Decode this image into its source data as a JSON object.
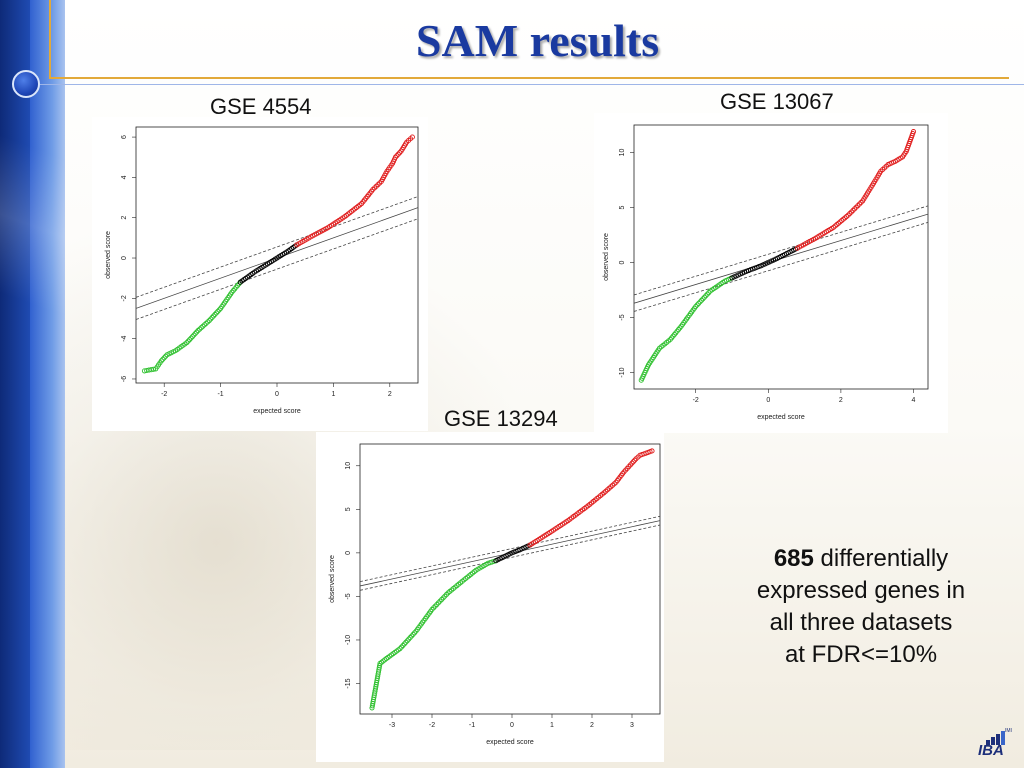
{
  "slide": {
    "title": "SAM results",
    "summary": {
      "count": "685",
      "line1_rest": " differentially",
      "line2": "expressed genes in",
      "line3": "all three datasets",
      "line4": "at FDR<=10%"
    },
    "logo_text": "IBA",
    "logo_small": "IMI"
  },
  "colors": {
    "title": "#1a3aa0",
    "significant_up": "#e01c1c",
    "significant_down": "#2ec02e",
    "not_significant": "#000000",
    "band_line": "#444444"
  },
  "chart_data": [
    {
      "type": "scatter",
      "title": "GSE 4554",
      "xlabel": "expected score",
      "ylabel": "observed score",
      "xlim": [
        -2.5,
        2.5
      ],
      "ylim": [
        -6.2,
        6.5
      ],
      "xticks": [
        -2,
        -1,
        0,
        1,
        2
      ],
      "yticks": [
        -6,
        -4,
        -2,
        0,
        2,
        4,
        6
      ],
      "band": {
        "slope": 1,
        "offset": 0.55
      },
      "series": [
        {
          "color": "green",
          "points": [
            [
              -2.35,
              -5.6
            ],
            [
              -2.15,
              -5.5
            ],
            [
              -2.05,
              -5.1
            ],
            [
              -1.95,
              -4.8
            ],
            [
              -1.8,
              -4.6
            ],
            [
              -1.6,
              -4.2
            ],
            [
              -1.4,
              -3.6
            ],
            [
              -1.2,
              -3.1
            ],
            [
              -1.0,
              -2.5
            ],
            [
              -0.8,
              -1.7
            ],
            [
              -0.65,
              -1.2
            ]
          ]
        },
        {
          "color": "black",
          "points": [
            [
              -0.65,
              -1.2
            ],
            [
              -0.4,
              -0.7
            ],
            [
              -0.2,
              -0.35
            ],
            [
              0.0,
              0.0
            ],
            [
              0.2,
              0.35
            ],
            [
              0.35,
              0.65
            ]
          ]
        },
        {
          "color": "red",
          "points": [
            [
              0.35,
              0.65
            ],
            [
              0.6,
              1.05
            ],
            [
              0.9,
              1.5
            ],
            [
              1.2,
              2.05
            ],
            [
              1.5,
              2.7
            ],
            [
              1.7,
              3.4
            ],
            [
              1.85,
              3.8
            ],
            [
              1.95,
              4.3
            ],
            [
              2.05,
              4.7
            ],
            [
              2.1,
              5.0
            ],
            [
              2.2,
              5.3
            ],
            [
              2.3,
              5.75
            ],
            [
              2.4,
              6.0
            ]
          ]
        }
      ]
    },
    {
      "type": "scatter",
      "title": "GSE 13067",
      "xlabel": "expected score",
      "ylabel": "observed score",
      "xlim": [
        -3.7,
        4.4
      ],
      "ylim": [
        -11.5,
        12.5
      ],
      "xticks": [
        -2,
        0,
        2,
        4
      ],
      "yticks": [
        -10,
        -5,
        0,
        5,
        10
      ],
      "band": {
        "slope": 1,
        "offset": 0.75
      },
      "series": [
        {
          "color": "green",
          "points": [
            [
              -3.5,
              -10.7
            ],
            [
              -3.3,
              -9.3
            ],
            [
              -3.2,
              -8.8
            ],
            [
              -3.0,
              -7.8
            ],
            [
              -2.7,
              -7.0
            ],
            [
              -2.4,
              -5.8
            ],
            [
              -2.0,
              -4.0
            ],
            [
              -1.6,
              -2.6
            ],
            [
              -1.2,
              -1.7
            ],
            [
              -1.0,
              -1.4
            ]
          ]
        },
        {
          "color": "black",
          "points": [
            [
              -1.0,
              -1.4
            ],
            [
              -0.6,
              -0.8
            ],
            [
              -0.2,
              -0.3
            ],
            [
              0.2,
              0.3
            ],
            [
              0.5,
              0.8
            ],
            [
              0.8,
              1.3
            ]
          ]
        },
        {
          "color": "red",
          "points": [
            [
              0.8,
              1.3
            ],
            [
              1.3,
              2.2
            ],
            [
              1.8,
              3.2
            ],
            [
              2.2,
              4.3
            ],
            [
              2.6,
              5.6
            ],
            [
              2.9,
              7.2
            ],
            [
              3.1,
              8.3
            ],
            [
              3.3,
              8.9
            ],
            [
              3.5,
              9.2
            ],
            [
              3.7,
              9.6
            ],
            [
              3.8,
              10.1
            ],
            [
              4.0,
              11.9
            ]
          ]
        }
      ]
    },
    {
      "type": "scatter",
      "title": "GSE 13294",
      "xlabel": "expected score",
      "ylabel": "observed score",
      "xlim": [
        -3.8,
        3.7
      ],
      "ylim": [
        -18.5,
        12.5
      ],
      "xticks": [
        -3,
        -2,
        -1,
        0,
        1,
        2,
        3
      ],
      "yticks": [
        -15,
        -10,
        -5,
        0,
        5,
        10
      ],
      "band": {
        "slope": 1,
        "offset": 0.5
      },
      "series": [
        {
          "color": "green",
          "points": [
            [
              -3.5,
              -17.8
            ],
            [
              -3.3,
              -12.7
            ],
            [
              -3.1,
              -12.0
            ],
            [
              -2.8,
              -11.0
            ],
            [
              -2.4,
              -9.0
            ],
            [
              -2.0,
              -6.5
            ],
            [
              -1.6,
              -4.6
            ],
            [
              -1.2,
              -3.1
            ],
            [
              -0.9,
              -2.0
            ],
            [
              -0.6,
              -1.2
            ],
            [
              -0.4,
              -0.9
            ]
          ]
        },
        {
          "color": "black",
          "points": [
            [
              -0.4,
              -0.9
            ],
            [
              -0.2,
              -0.45
            ],
            [
              0.0,
              0.0
            ],
            [
              0.2,
              0.35
            ],
            [
              0.45,
              0.9
            ]
          ]
        },
        {
          "color": "red",
          "points": [
            [
              0.45,
              0.9
            ],
            [
              0.9,
              2.2
            ],
            [
              1.4,
              3.7
            ],
            [
              1.9,
              5.4
            ],
            [
              2.3,
              6.9
            ],
            [
              2.6,
              8.1
            ],
            [
              2.8,
              9.3
            ],
            [
              3.0,
              10.3
            ],
            [
              3.1,
              10.8
            ],
            [
              3.2,
              11.2
            ],
            [
              3.5,
              11.7
            ]
          ]
        }
      ]
    }
  ]
}
